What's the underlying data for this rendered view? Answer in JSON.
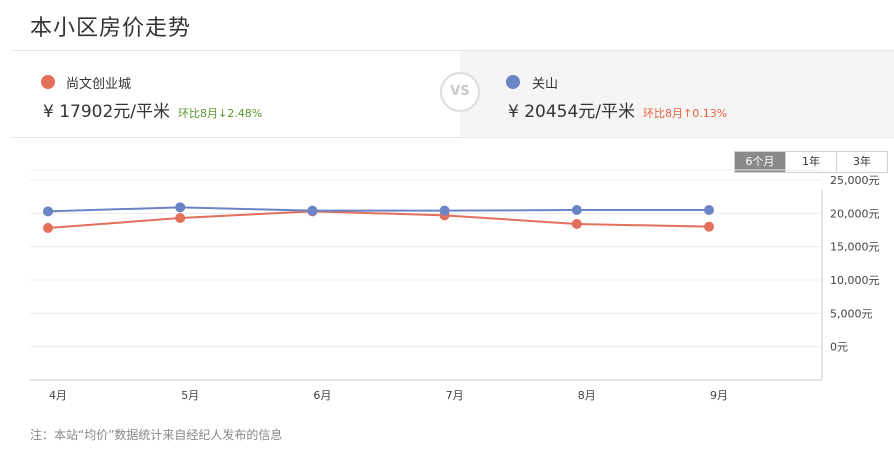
{
  "page_title": "本小区房价走势",
  "left": {
    "name": "尚文创业城",
    "price": "¥ 17902元/平米",
    "mom": "环比8月↓2.48%",
    "color": "#e2705c",
    "mom_color": "#5a9a2f"
  },
  "vs_label": "VS",
  "right": {
    "name": "关山",
    "price": "¥ 20454元/平米",
    "mom": "环比8月↑0.13%",
    "color": "#6b84c6",
    "mom_color": "#e8623a"
  },
  "range_tabs": [
    "6个月",
    "1年",
    "3年"
  ],
  "active_range": "6个月",
  "chart_data": {
    "type": "line",
    "x": [
      "4月",
      "5月",
      "6月",
      "7月",
      "8月",
      "9月"
    ],
    "series": [
      {
        "name": "尚文创业城",
        "color": "#e2705c",
        "values": [
          17800,
          19300,
          20300,
          19700,
          18400,
          18000
        ]
      },
      {
        "name": "关山",
        "color": "#6b84c6",
        "values": [
          20300,
          20900,
          20400,
          20400,
          20500,
          20500
        ]
      }
    ],
    "y_ticks": [
      "0元",
      "5,000元",
      "10,000元",
      "15,000元",
      "20,000元",
      "25,000元"
    ],
    "y_tick_values": [
      0,
      5000,
      10000,
      15000,
      20000,
      25000
    ],
    "ylim": [
      -5000,
      26500
    ],
    "y_axis_position": "right",
    "grid": true
  },
  "note": "注：本站“均价”数据统计来自经纪人发布的信息"
}
